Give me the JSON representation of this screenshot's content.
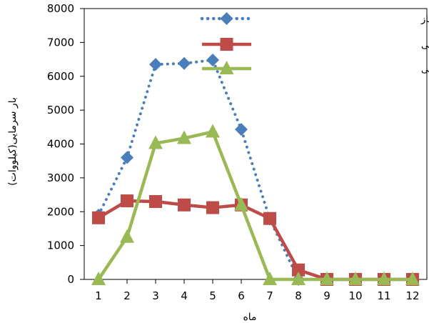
{
  "chart_data": {
    "type": "line",
    "title": "",
    "xlabel": "ماه",
    "ylabel": "بار سرمایی(کیلووات)",
    "x": [
      1,
      2,
      3,
      4,
      5,
      6,
      7,
      8,
      9,
      10,
      11,
      12
    ],
    "ylim": [
      0,
      8000
    ],
    "yticks": [
      0,
      1000,
      2000,
      3000,
      4000,
      5000,
      6000,
      7000,
      8000
    ],
    "grid": false,
    "legend_position": "top-right",
    "series": [
      {
        "name": "سرمایش مورد نیاز",
        "color": "#4a7ebb",
        "line_style": "dotted",
        "marker": "diamond",
        "values": [
          1900,
          3600,
          6350,
          6380,
          6480,
          4430,
          1780,
          0,
          0,
          0,
          0,
          0
        ]
      },
      {
        "name": "سرمایش مهیا شده توسط چیلر جذبی",
        "color": "#be4b48",
        "line_style": "solid",
        "marker": "square",
        "values": [
          1820,
          2320,
          2300,
          2200,
          2120,
          2200,
          1800,
          280,
          0,
          0,
          0,
          0
        ]
      },
      {
        "name": "سرمایش مهیا شده توسط چیلر الکتریکی",
        "color": "#98b954",
        "line_style": "solid",
        "marker": "triangle",
        "values": [
          0,
          1250,
          4020,
          4170,
          4360,
          2200,
          0,
          0,
          0,
          0,
          0,
          0
        ]
      }
    ]
  }
}
